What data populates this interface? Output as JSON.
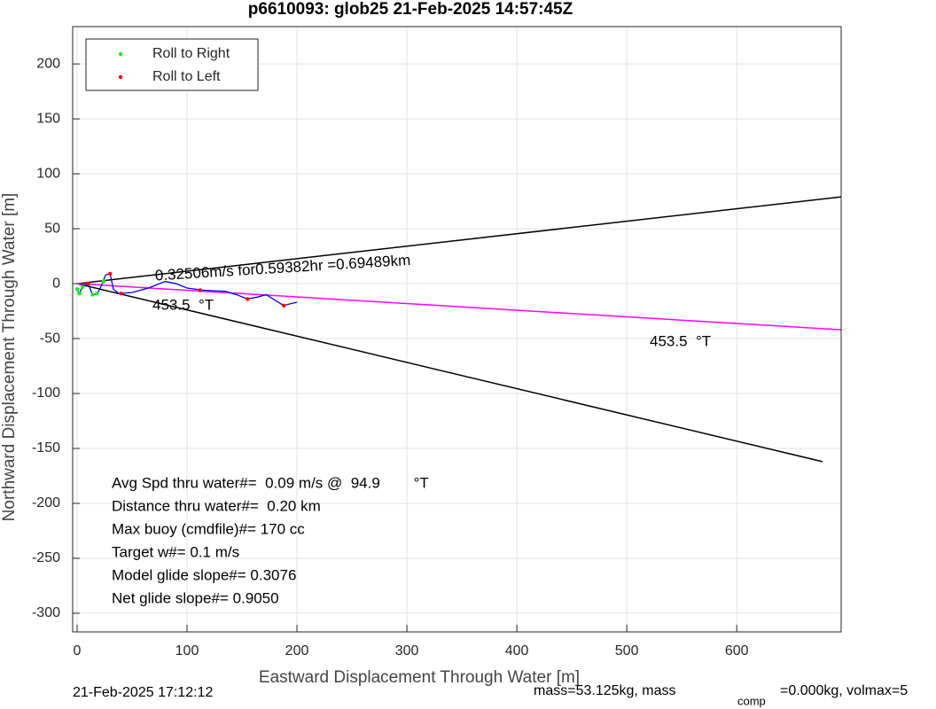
{
  "chart_data": {
    "type": "line",
    "title": "p6610093: glob25 21-Feb-2025 14:57:45Z",
    "xlabel": "Eastward Displacement Through Water [m]",
    "ylabel": "Northward Displacement Through Water [m]",
    "xlim": [
      -4,
      695
    ],
    "ylim": [
      -317,
      234
    ],
    "xticks": [
      0,
      100,
      200,
      300,
      400,
      500,
      600
    ],
    "yticks": [
      -300,
      -250,
      -200,
      -150,
      -100,
      -50,
      0,
      50,
      100,
      150,
      200
    ],
    "grid": true,
    "legend": "upper-left",
    "series": [
      {
        "name": "Roll to Right",
        "color": "#00ff00",
        "x": [
          0,
          2,
          5,
          14,
          18,
          24
        ],
        "values": [
          -5,
          -9,
          -3,
          -10,
          -9,
          2
        ]
      },
      {
        "name": "Roll to Left",
        "color": "#ff0000",
        "x": [
          10,
          30,
          40,
          112,
          155,
          188
        ],
        "values": [
          0,
          9,
          -9,
          -6,
          -14,
          -20
        ]
      },
      {
        "color": "#0000ff",
        "x": [
          0,
          2,
          5,
          10,
          14,
          18,
          22,
          26,
          30,
          33,
          38,
          50,
          65,
          80,
          90,
          100,
          115,
          135,
          145,
          155,
          165,
          172,
          180,
          188,
          195,
          200
        ],
        "values": [
          -5,
          -9,
          -3,
          0,
          -10,
          -10,
          -2,
          8,
          9,
          -5,
          -9,
          -8,
          -4,
          2,
          0,
          -4,
          -6,
          -7,
          -10,
          -14,
          -12,
          -10,
          -15,
          -20,
          -18,
          -17
        ]
      }
    ],
    "lines": [
      {
        "color": "#000000",
        "x": [
          0,
          695
        ],
        "values": [
          0,
          79
        ]
      },
      {
        "color": "#000000",
        "x": [
          0,
          678
        ],
        "values": [
          0,
          -162
        ]
      },
      {
        "color": "#ff00ff",
        "x": [
          0,
          695
        ],
        "values": [
          0,
          -42
        ]
      }
    ],
    "annotations": [
      "0.32506m/s for0.59382hr =0.69489km",
      "453.5  °T",
      "453.5  °T"
    ],
    "stats": [
      "Avg Spd thru water#=  0.09 m/s @  94.9        °T",
      "Distance thru water#=  0.20 km",
      "Max buoy (cmdfile)#= 170 cc",
      "Target w#= 0.1 m/s",
      "Model glide slope#= 0.3076",
      "Net glide slope#= 0.9050"
    ],
    "footer": [
      "21-Feb-2025 17:12:12",
      "mass=53.125kg, mass",
      "comp",
      "=0.000kg, volmax=5"
    ]
  }
}
